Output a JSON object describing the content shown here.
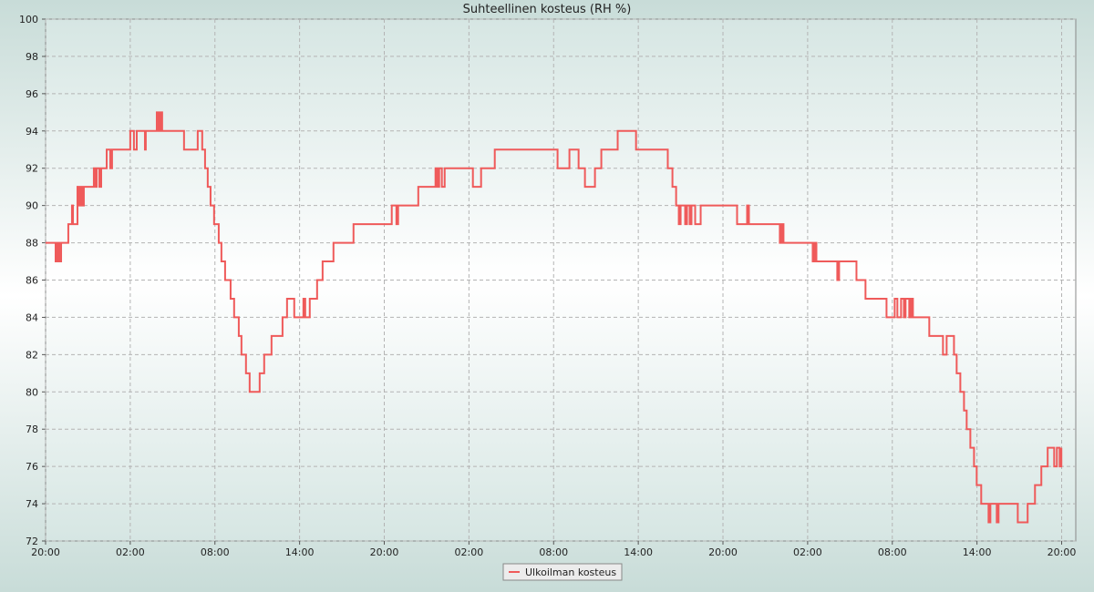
{
  "chart_data": {
    "type": "line",
    "title": "Suhteellinen kosteus (RH %)",
    "step": true,
    "grid": true,
    "legend": "bottom",
    "series": [
      {
        "name": "Ulkoilman kosteus",
        "color": "#ef5a5a",
        "x": [
          0,
          0.71,
          0.84,
          0.97,
          1.1,
          1.61,
          1.87,
          1.94,
          2.26,
          2.39,
          2.52,
          2.65,
          2.71,
          3.42,
          3.55,
          3.62,
          3.81,
          3.94,
          4.33,
          4.58,
          4.71,
          6.0,
          6.26,
          6.46,
          7.04,
          7.1,
          7.88,
          8.01,
          8.13,
          8.26,
          9.81,
          10.78,
          11.1,
          11.3,
          11.49,
          11.69,
          11.94,
          12.27,
          12.46,
          12.72,
          13.11,
          13.36,
          13.69,
          13.88,
          14.2,
          14.46,
          15.17,
          15.49,
          16.01,
          16.79,
          17.11,
          17.62,
          18.27,
          18.4,
          18.72,
          19.24,
          19.63,
          20.4,
          21.82,
          24.53,
          24.86,
          24.98,
          26.41,
          27.63,
          27.76,
          27.89,
          28.08,
          28.28,
          30.28,
          30.86,
          31.83,
          36.28,
          37.12,
          37.77,
          38.22,
          38.93,
          39.38,
          40.54,
          41.84,
          44.09,
          44.42,
          44.68,
          44.87,
          45.0,
          45.32,
          45.45,
          45.64,
          45.77,
          46.03,
          46.42,
          49.0,
          49.71,
          49.84,
          52.03,
          52.16,
          52.29,
          54.36,
          54.49,
          54.62,
          56.1,
          56.23,
          57.46,
          58.1,
          59.59,
          60.17,
          60.36,
          60.62,
          60.82,
          60.94,
          61.2,
          61.33,
          61.46,
          62.62,
          63.59,
          63.85,
          64.37,
          64.56,
          64.82,
          65.08,
          65.27,
          65.53,
          65.79,
          65.98,
          66.3,
          66.82,
          66.95,
          67.4,
          67.53,
          68.89,
          69.59,
          70.11,
          70.56,
          71.01,
          71.47,
          71.66,
          71.86,
          71.98
        ],
        "values": [
          88,
          87,
          88,
          87,
          88,
          89,
          90,
          89,
          91,
          90,
          91,
          90,
          91,
          92,
          91,
          92,
          91,
          92,
          93,
          92,
          93,
          94,
          93,
          94,
          93,
          94,
          95,
          94,
          95,
          94,
          93,
          94,
          93,
          92,
          91,
          90,
          89,
          88,
          87,
          86,
          85,
          84,
          83,
          82,
          81,
          80,
          81,
          82,
          83,
          84,
          85,
          84,
          85,
          84,
          85,
          86,
          87,
          88,
          89,
          90,
          89,
          90,
          91,
          92,
          91,
          92,
          91,
          92,
          91,
          92,
          93,
          92,
          93,
          92,
          91,
          92,
          93,
          94,
          93,
          92,
          91,
          90,
          89,
          90,
          89,
          90,
          89,
          90,
          89,
          90,
          89,
          90,
          89,
          88,
          89,
          88,
          87,
          88,
          87,
          86,
          87,
          86,
          85,
          84,
          85,
          84,
          85,
          84,
          85,
          84,
          85,
          84,
          83,
          82,
          83,
          82,
          81,
          80,
          79,
          78,
          77,
          76,
          75,
          74,
          73,
          74,
          73,
          74,
          73,
          74,
          75,
          76,
          77,
          76,
          77,
          76,
          77
        ]
      }
    ],
    "xlim": [
      0,
      73
    ],
    "xticks": [
      {
        "value": 0,
        "label": "20:00"
      },
      {
        "value": 6,
        "label": "02:00"
      },
      {
        "value": 12,
        "label": "08:00"
      },
      {
        "value": 18,
        "label": "14:00"
      },
      {
        "value": 24,
        "label": "20:00"
      },
      {
        "value": 30,
        "label": "02:00"
      },
      {
        "value": 36,
        "label": "08:00"
      },
      {
        "value": 42,
        "label": "14:00"
      },
      {
        "value": 48,
        "label": "20:00"
      },
      {
        "value": 54,
        "label": "02:00"
      },
      {
        "value": 60,
        "label": "08:00"
      },
      {
        "value": 66,
        "label": "14:00"
      },
      {
        "value": 72,
        "label": "20:00"
      }
    ],
    "ylim": [
      72,
      100
    ],
    "yticks": [
      72,
      74,
      76,
      78,
      80,
      82,
      84,
      86,
      88,
      90,
      92,
      94,
      96,
      98,
      100
    ]
  }
}
